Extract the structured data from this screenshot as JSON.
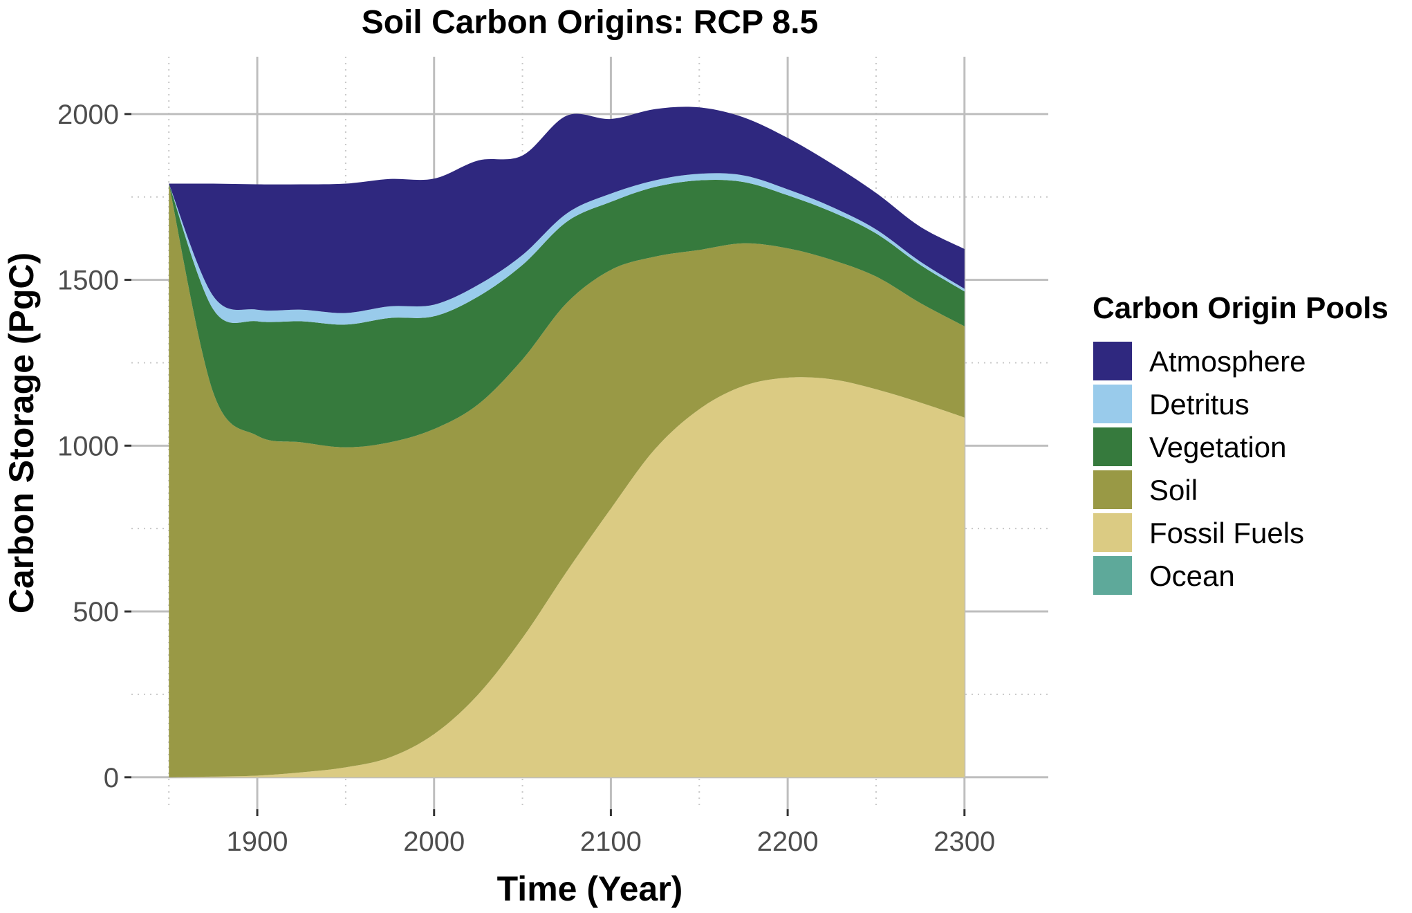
{
  "chart_data": {
    "type": "area",
    "stacked": true,
    "title": "Soil Carbon Origins: RCP 8.5",
    "xlabel": "Time (Year)",
    "ylabel": "Carbon Storage (PgC)",
    "xlim": [
      1850,
      2300
    ],
    "ylim": [
      0,
      2000
    ],
    "x_ticks": [
      1900,
      2000,
      2100,
      2200,
      2300
    ],
    "y_ticks": [
      0,
      500,
      1000,
      1500,
      2000
    ],
    "grid": true,
    "legend": {
      "title": "Carbon Origin Pools",
      "position": "right"
    },
    "x": [
      1850,
      1875,
      1900,
      1925,
      1950,
      1975,
      2000,
      2025,
      2050,
      2075,
      2100,
      2125,
      2150,
      2175,
      2200,
      2225,
      2250,
      2275,
      2300
    ],
    "series": [
      {
        "name": "Ocean",
        "color": "#5ea99a",
        "values": [
          0,
          0,
          0,
          0,
          0,
          0,
          0,
          0,
          0,
          0,
          0,
          0,
          0,
          0,
          0,
          0,
          0,
          0,
          0
        ]
      },
      {
        "name": "Fossil Fuels",
        "color": "#dbcb83",
        "values": [
          0,
          2,
          5,
          15,
          30,
          60,
          130,
          250,
          420,
          620,
          810,
          990,
          1110,
          1180,
          1205,
          1200,
          1170,
          1130,
          1085
        ]
      },
      {
        "name": "Soil",
        "color": "#999945",
        "values": [
          1790,
          1160,
          1025,
          995,
          965,
          950,
          920,
          875,
          840,
          810,
          720,
          580,
          480,
          430,
          390,
          360,
          340,
          300,
          275
        ]
      },
      {
        "name": "Vegetation",
        "color": "#367a3d",
        "values": [
          0,
          250,
          345,
          365,
          370,
          375,
          340,
          325,
          285,
          245,
          205,
          210,
          210,
          185,
          160,
          145,
          130,
          115,
          105
        ]
      },
      {
        "name": "Detritus",
        "color": "#99cbeb",
        "values": [
          0,
          40,
          35,
          35,
          35,
          35,
          35,
          35,
          30,
          25,
          25,
          20,
          20,
          20,
          18,
          15,
          12,
          10,
          8
        ]
      },
      {
        "name": "Atmosphere",
        "color": "#2f287f",
        "values": [
          0,
          338,
          378,
          378,
          390,
          384,
          380,
          375,
          300,
          295,
          225,
          215,
          200,
          175,
          155,
          130,
          110,
          105,
          120
        ]
      }
    ],
    "legend_order": [
      "Atmosphere",
      "Detritus",
      "Vegetation",
      "Soil",
      "Fossil Fuels",
      "Ocean"
    ]
  }
}
